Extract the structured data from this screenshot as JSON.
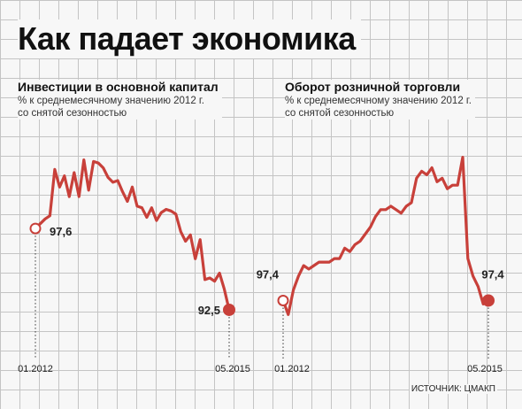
{
  "title": "Как падает экономика",
  "source": "ИСТОЧНИК: ЦМАКП",
  "colors": {
    "line": "#c8403a",
    "start_point_fill": "#ffffff",
    "end_point_fill": "#c8403a"
  },
  "chart_data": [
    {
      "type": "line",
      "title": "Инвестиции в основной капитал",
      "subtitle_line1": "% к среднемесячному значению 2012 г.",
      "subtitle_line2": "со снятой сезонностью",
      "x_start_label": "01.2012",
      "x_end_label": "05.2015",
      "start_value": 97.6,
      "end_value": 92.5,
      "start_value_label": "97,6",
      "end_value_label": "92,5",
      "ylim": [
        91.5,
        103.6
      ],
      "grid": true,
      "x": [
        "01.2012",
        "02.2012",
        "03.2012",
        "04.2012",
        "05.2012",
        "06.2012",
        "07.2012",
        "08.2012",
        "09.2012",
        "10.2012",
        "11.2012",
        "12.2012",
        "01.2013",
        "02.2013",
        "03.2013",
        "04.2013",
        "05.2013",
        "06.2013",
        "07.2013",
        "08.2013",
        "09.2013",
        "10.2013",
        "11.2013",
        "12.2013",
        "01.2014",
        "02.2014",
        "03.2014",
        "04.2014",
        "05.2014",
        "06.2014",
        "07.2014",
        "08.2014",
        "09.2014",
        "10.2014",
        "11.2014",
        "12.2014",
        "01.2015",
        "02.2015",
        "03.2015",
        "04.2015",
        "05.2015"
      ],
      "values": [
        97.6,
        97.9,
        98.2,
        98.4,
        101.3,
        100.2,
        100.9,
        99.6,
        101.1,
        99.6,
        101.9,
        100.0,
        101.8,
        101.7,
        101.4,
        100.8,
        100.5,
        100.6,
        99.9,
        99.3,
        100.2,
        99.0,
        98.9,
        98.3,
        98.9,
        98.1,
        98.6,
        98.8,
        98.7,
        98.5,
        97.4,
        96.8,
        97.2,
        95.7,
        96.9,
        94.4,
        94.5,
        94.3,
        94.8,
        93.8,
        92.5
      ]
    },
    {
      "type": "line",
      "title": "Оборот розничной торговли",
      "subtitle_line1": "% к среднемесячному значению 2012 г.",
      "subtitle_line2": "со снятой сезонностью",
      "x_start_label": "01.2012",
      "x_end_label": "05.2015",
      "start_value": 97.4,
      "end_value": 97.4,
      "start_value_label": "97,4",
      "end_value_label": "97,4",
      "ylim": [
        96.5,
        102.2
      ],
      "grid": true,
      "x": [
        "01.2012",
        "02.2012",
        "03.2012",
        "04.2012",
        "05.2012",
        "06.2012",
        "07.2012",
        "08.2012",
        "09.2012",
        "10.2012",
        "11.2012",
        "12.2012",
        "01.2013",
        "02.2013",
        "03.2013",
        "04.2013",
        "05.2013",
        "06.2013",
        "07.2013",
        "08.2013",
        "09.2013",
        "10.2013",
        "11.2013",
        "12.2013",
        "01.2014",
        "02.2014",
        "03.2014",
        "04.2014",
        "05.2014",
        "06.2014",
        "07.2014",
        "08.2014",
        "09.2014",
        "10.2014",
        "11.2014",
        "12.2014",
        "01.2015",
        "02.2015",
        "03.2015",
        "04.2015",
        "05.2015"
      ],
      "values": [
        97.4,
        97.0,
        97.7,
        98.1,
        98.4,
        98.3,
        98.4,
        98.5,
        98.5,
        98.5,
        98.6,
        98.6,
        98.9,
        98.8,
        99.0,
        99.1,
        99.3,
        99.5,
        99.8,
        100.0,
        100.0,
        100.1,
        100.0,
        99.9,
        100.1,
        100.2,
        100.9,
        101.1,
        101.0,
        101.2,
        100.8,
        100.9,
        100.6,
        100.7,
        100.7,
        101.5,
        98.6,
        98.1,
        97.8,
        97.3,
        97.4
      ]
    }
  ]
}
